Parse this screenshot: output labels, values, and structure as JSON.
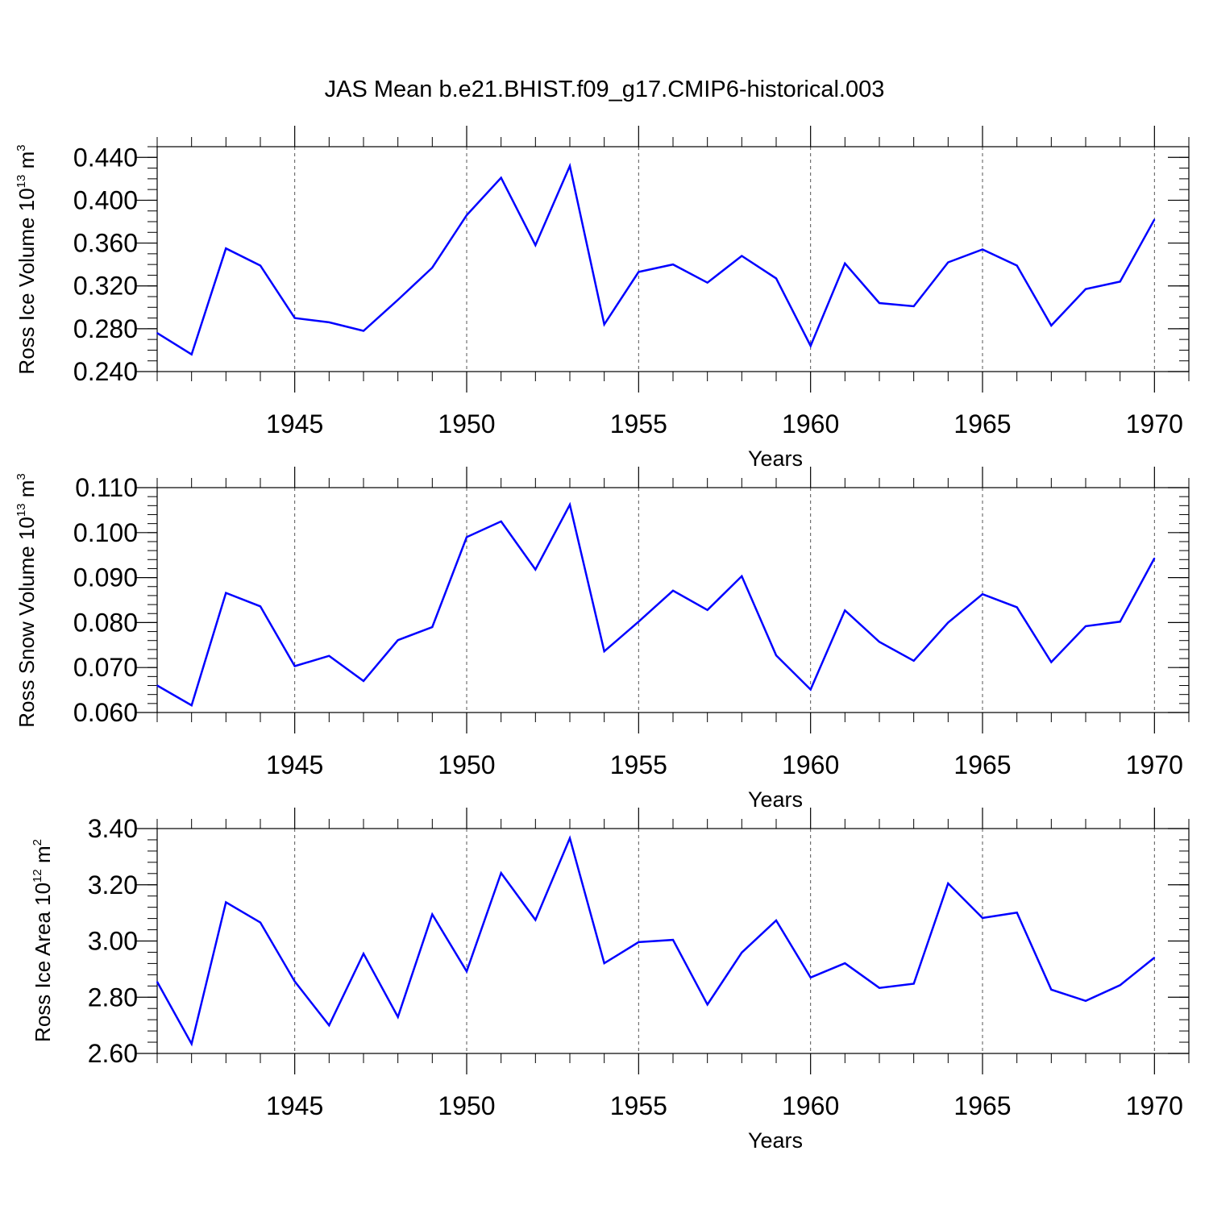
{
  "figure": {
    "title": "JAS Mean b.e21.BHIST.f09_g17.CMIP6-historical.003"
  },
  "style": {
    "line_color": "#0000ff",
    "axis_color": "#000000",
    "grid_color": "#555555"
  },
  "chart_data": [
    {
      "type": "line",
      "title": "JAS Mean b.e21.BHIST.f09_g17.CMIP6-historical.003",
      "ylabel_main": "Ross Ice Volume 10",
      "ylabel_exp": "13",
      "ylabel_unit": " m",
      "ylabel_unit_exp": "3",
      "xlabel": "Years",
      "xlim": [
        1941,
        1971
      ],
      "ylim": [
        0.24,
        0.45
      ],
      "yticks": [
        0.24,
        0.28,
        0.32,
        0.36,
        0.4,
        0.44
      ],
      "ytick_labels": [
        "0.240",
        "0.280",
        "0.320",
        "0.360",
        "0.400",
        "0.440"
      ],
      "yminor_step": 0.01,
      "xticks": [
        1945,
        1950,
        1955,
        1960,
        1965,
        1970
      ],
      "xtick_labels": [
        "1945",
        "1950",
        "1955",
        "1960",
        "1965",
        "1970"
      ],
      "grid": "vertical dashed at major x ticks",
      "x": [
        1941,
        1942,
        1943,
        1944,
        1945,
        1946,
        1947,
        1948,
        1949,
        1950,
        1951,
        1952,
        1953,
        1954,
        1955,
        1956,
        1957,
        1958,
        1959,
        1960,
        1961,
        1962,
        1963,
        1964,
        1965,
        1966,
        1967,
        1968,
        1969,
        1970
      ],
      "series": [
        {
          "values": [
            0.276,
            0.256,
            0.355,
            0.339,
            0.29,
            0.286,
            0.278,
            0.307,
            0.337,
            0.386,
            0.421,
            0.358,
            0.432,
            0.284,
            0.333,
            0.34,
            0.323,
            0.348,
            0.327,
            0.264,
            0.341,
            0.304,
            0.301,
            0.342,
            0.354,
            0.339,
            0.283,
            0.317,
            0.324,
            0.382
          ]
        }
      ]
    },
    {
      "type": "line",
      "ylabel_main": "Ross Snow Volume 10",
      "ylabel_exp": "13",
      "ylabel_unit": " m",
      "ylabel_unit_exp": "3",
      "xlabel": "Years",
      "xlim": [
        1941,
        1971
      ],
      "ylim": [
        0.06,
        0.11
      ],
      "yticks": [
        0.06,
        0.07,
        0.08,
        0.09,
        0.1,
        0.11
      ],
      "ytick_labels": [
        "0.060",
        "0.070",
        "0.080",
        "0.090",
        "0.100",
        "0.110"
      ],
      "yminor_step": 0.002,
      "xticks": [
        1945,
        1950,
        1955,
        1960,
        1965,
        1970
      ],
      "xtick_labels": [
        "1945",
        "1950",
        "1955",
        "1960",
        "1965",
        "1970"
      ],
      "grid": "vertical dashed at major x ticks",
      "x": [
        1941,
        1942,
        1943,
        1944,
        1945,
        1946,
        1947,
        1948,
        1949,
        1950,
        1951,
        1952,
        1953,
        1954,
        1955,
        1956,
        1957,
        1958,
        1959,
        1960,
        1961,
        1962,
        1963,
        1964,
        1965,
        1966,
        1967,
        1968,
        1969,
        1970
      ],
      "series": [
        {
          "values": [
            0.066,
            0.0616,
            0.0866,
            0.0836,
            0.0703,
            0.0726,
            0.067,
            0.0761,
            0.079,
            0.099,
            0.1025,
            0.0918,
            0.1062,
            0.0736,
            0.0802,
            0.0871,
            0.0828,
            0.0903,
            0.0727,
            0.0651,
            0.0827,
            0.0757,
            0.0715,
            0.08,
            0.0863,
            0.0834,
            0.0712,
            0.0792,
            0.0802,
            0.0943
          ]
        }
      ]
    },
    {
      "type": "line",
      "ylabel_main": "Ross Ice Area 10",
      "ylabel_exp": "12",
      "ylabel_unit": " m",
      "ylabel_unit_exp": "2",
      "xlabel": "Years",
      "xlim": [
        1941,
        1971
      ],
      "ylim": [
        2.6,
        3.4
      ],
      "yticks": [
        2.6,
        2.8,
        3.0,
        3.2,
        3.4
      ],
      "ytick_labels": [
        "2.60",
        "2.80",
        "3.00",
        "3.20",
        "3.40"
      ],
      "yminor_step": 0.04,
      "xticks": [
        1945,
        1950,
        1955,
        1960,
        1965,
        1970
      ],
      "xtick_labels": [
        "1945",
        "1950",
        "1955",
        "1960",
        "1965",
        "1970"
      ],
      "grid": "vertical dashed at major x ticks",
      "x": [
        1941,
        1942,
        1943,
        1944,
        1945,
        1946,
        1947,
        1948,
        1949,
        1950,
        1951,
        1952,
        1953,
        1954,
        1955,
        1956,
        1957,
        1958,
        1959,
        1960,
        1961,
        1962,
        1963,
        1964,
        1965,
        1966,
        1967,
        1968,
        1969,
        1970
      ],
      "series": [
        {
          "values": [
            2.855,
            2.634,
            3.138,
            3.066,
            2.856,
            2.7,
            2.955,
            2.73,
            3.095,
            2.892,
            3.242,
            3.075,
            3.366,
            2.921,
            2.996,
            3.004,
            2.774,
            2.959,
            3.073,
            2.87,
            2.921,
            2.833,
            2.848,
            3.205,
            3.082,
            3.101,
            2.827,
            2.787,
            2.843,
            2.941
          ]
        }
      ]
    }
  ]
}
